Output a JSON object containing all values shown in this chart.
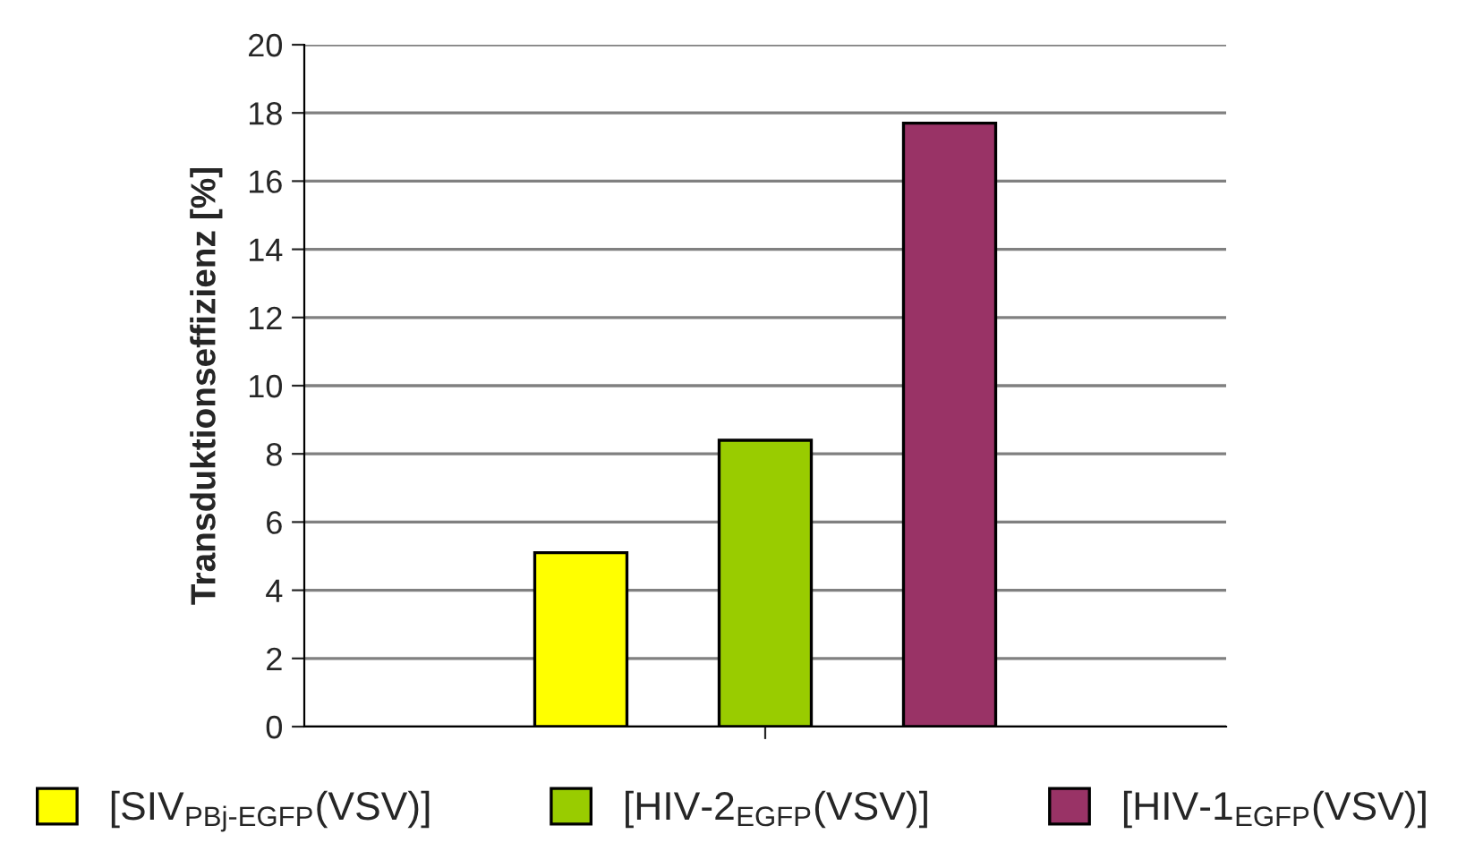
{
  "chart_data": {
    "type": "bar",
    "ylabel": "Transduktionseffizienz [%]",
    "categories": [
      null
    ],
    "series": [
      {
        "name": "[SIV$_{PBj-EGFP}$(VSV)]",
        "color": "#ffff00",
        "values": [
          5.1
        ]
      },
      {
        "name": "[HIV-2$_{EGFP}$(VSV)]",
        "color": "#99cc00",
        "values": [
          8.4
        ]
      },
      {
        "name": "[HIV-1$_{EGFP}$(VSV)]",
        "color": "#993366",
        "values": [
          17.7
        ]
      }
    ],
    "ylim": [
      0,
      20
    ],
    "yticks": [
      0,
      2,
      4,
      6,
      8,
      10,
      12,
      14,
      16,
      18,
      20
    ],
    "grid": "y",
    "legend": "bottom"
  }
}
